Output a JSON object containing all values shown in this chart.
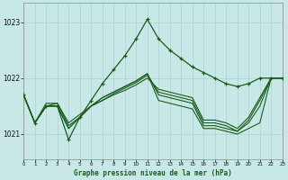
{
  "title": "Graphe pression niveau de la mer (hPa)",
  "bg_color": "#c8e8e8",
  "grid_color": "#aacccc",
  "line_color": "#1a5c1a",
  "xlim": [
    0,
    23
  ],
  "ylim": [
    1020.55,
    1023.35
  ],
  "yticks": [
    1021,
    1022,
    1023
  ],
  "xtick_labels": [
    "0",
    "1",
    "2",
    "3",
    "4",
    "5",
    "6",
    "7",
    "8",
    "9",
    "10",
    "11",
    "12",
    "13",
    "14",
    "15",
    "16",
    "17",
    "18",
    "19",
    "20",
    "21",
    "22",
    "23"
  ],
  "series": [
    {
      "y": [
        1021.7,
        1021.2,
        1021.5,
        1021.5,
        1020.9,
        1021.3,
        1021.6,
        1021.9,
        1022.15,
        1022.4,
        1022.7,
        1023.05,
        1022.7,
        1022.5,
        1022.35,
        1022.2,
        1022.1,
        1022.0,
        1021.9,
        1021.85,
        1021.9,
        1022.0,
        1022.0,
        1022.0
      ],
      "markers": true,
      "lw": 0.9
    },
    {
      "y": [
        1021.7,
        1021.2,
        1021.5,
        1021.5,
        1021.1,
        1021.3,
        1021.5,
        1021.65,
        1021.75,
        1021.85,
        1021.95,
        1022.08,
        1021.6,
        1021.55,
        1021.5,
        1021.45,
        1021.1,
        1021.1,
        1021.05,
        1021.0,
        1021.1,
        1021.2,
        1022.0,
        1022.0
      ],
      "markers": false,
      "lw": 0.8
    },
    {
      "y": [
        1021.7,
        1021.2,
        1021.5,
        1021.5,
        1021.1,
        1021.3,
        1021.5,
        1021.65,
        1021.75,
        1021.85,
        1021.95,
        1022.08,
        1021.7,
        1021.65,
        1021.6,
        1021.55,
        1021.15,
        1021.15,
        1021.1,
        1021.05,
        1021.2,
        1021.5,
        1022.0,
        1022.0
      ],
      "markers": false,
      "lw": 0.8
    },
    {
      "y": [
        1021.7,
        1021.2,
        1021.5,
        1021.55,
        1021.15,
        1021.3,
        1021.5,
        1021.6,
        1021.72,
        1021.82,
        1021.92,
        1022.05,
        1021.75,
        1021.7,
        1021.65,
        1021.6,
        1021.2,
        1021.2,
        1021.15,
        1021.05,
        1021.25,
        1021.6,
        1022.0,
        1022.0
      ],
      "markers": false,
      "lw": 0.8
    },
    {
      "y": [
        1021.7,
        1021.2,
        1021.55,
        1021.55,
        1021.2,
        1021.35,
        1021.5,
        1021.6,
        1021.7,
        1021.78,
        1021.88,
        1022.0,
        1021.8,
        1021.75,
        1021.7,
        1021.65,
        1021.25,
        1021.25,
        1021.2,
        1021.1,
        1021.3,
        1021.65,
        1022.0,
        1022.0
      ],
      "markers": false,
      "lw": 0.8
    }
  ]
}
